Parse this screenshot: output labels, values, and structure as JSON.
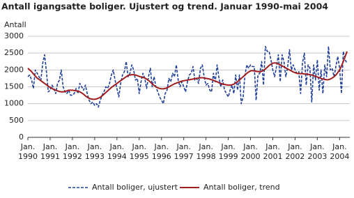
{
  "chart_data": {
    "type": "line",
    "title": "Antall igangsatte boliger. Ujustert og trend. Januar 1990-mai 2004",
    "y_label": "Antall",
    "categories": [
      "Jan. 1990",
      null,
      null,
      null,
      null,
      null,
      null,
      null,
      null,
      null,
      null,
      null,
      "Jan. 1991",
      null,
      null,
      null,
      null,
      null,
      null,
      null,
      null,
      null,
      null,
      null,
      "Jan. 1992",
      null,
      null,
      null,
      null,
      null,
      null,
      null,
      null,
      null,
      null,
      null,
      "Jan. 1993",
      null,
      null,
      null,
      null,
      null,
      null,
      null,
      null,
      null,
      null,
      null,
      "Jan. 1994",
      null,
      null,
      null,
      null,
      null,
      null,
      null,
      null,
      null,
      null,
      null,
      "Jan. 1995",
      null,
      null,
      null,
      null,
      null,
      null,
      null,
      null,
      null,
      null,
      null,
      "Jan. 1996",
      null,
      null,
      null,
      null,
      null,
      null,
      null,
      null,
      null,
      null,
      null,
      "Jan. 1997",
      null,
      null,
      null,
      null,
      null,
      null,
      null,
      null,
      null,
      null,
      null,
      "Jan. 1998",
      null,
      null,
      null,
      null,
      null,
      null,
      null,
      null,
      null,
      null,
      null,
      "Jan. 1999",
      null,
      null,
      null,
      null,
      null,
      null,
      null,
      null,
      null,
      null,
      null,
      "Jan. 2000",
      null,
      null,
      null,
      null,
      null,
      null,
      null,
      null,
      null,
      null,
      null,
      "Jan. 2001",
      null,
      null,
      null,
      null,
      null,
      null,
      null,
      null,
      null,
      null,
      null,
      "Jan. 2002",
      null,
      null,
      null,
      null,
      null,
      null,
      null,
      null,
      null,
      null,
      null,
      "Jan. 2003",
      null,
      null,
      null,
      null,
      null,
      null,
      null,
      null,
      null,
      null,
      null,
      "Jan. 2004",
      null,
      null,
      null,
      null
    ],
    "series": [
      {
        "name": "Antall boliger, ujustert",
        "color": "#1f3f99",
        "dashed": true,
        "values": [
          1800,
          1850,
          1700,
          1450,
          2000,
          1900,
          1800,
          1700,
          2200,
          2450,
          1950,
          1350,
          1400,
          1550,
          1450,
          1300,
          1600,
          1700,
          2000,
          1500,
          1350,
          1300,
          1400,
          1250,
          1250,
          1300,
          1450,
          1300,
          1600,
          1500,
          1400,
          1550,
          1300,
          1100,
          1000,
          1050,
          950,
          1000,
          900,
          1100,
          1250,
          1350,
          1500,
          1450,
          1600,
          1850,
          2000,
          1700,
          1450,
          1200,
          1600,
          1850,
          1950,
          2250,
          1800,
          1900,
          2150,
          2000,
          1700,
          1750,
          1300,
          1650,
          1900,
          1750,
          1450,
          1800,
          2050,
          1500,
          1800,
          1500,
          1350,
          1200,
          1100,
          1000,
          1300,
          1400,
          1750,
          1650,
          1900,
          1800,
          2150,
          1700,
          1500,
          1650,
          1500,
          1350,
          1650,
          1850,
          1900,
          2100,
          1700,
          1750,
          1600,
          2050,
          2150,
          1800,
          1550,
          1600,
          1400,
          1350,
          1900,
          1650,
          2150,
          1750,
          1500,
          1700,
          1400,
          1300,
          1200,
          1400,
          1550,
          1300,
          1850,
          1400,
          1850,
          1000,
          1200,
          1850,
          2150,
          2050,
          2150,
          2100,
          2100,
          1100,
          1850,
          1900,
          2250,
          1550,
          2700,
          2550,
          2550,
          2300,
          2000,
          1800,
          2100,
          2450,
          1650,
          2450,
          2250,
          1800,
          2100,
          2600,
          2000,
          2150,
          2000,
          1900,
          1950,
          1300,
          2200,
          2500,
          1550,
          2150,
          2050,
          1050,
          2150,
          1700,
          2300,
          1400,
          2000,
          1300,
          2150,
          1800,
          2700,
          2000,
          2050,
          1800,
          2100,
          2400,
          2050,
          1300,
          2550,
          2300,
          2200
        ]
      },
      {
        "name": "Antall boliger, trend",
        "color": "#a11d1d",
        "dashed": false,
        "values": [
          2050,
          2000,
          1950,
          1880,
          1820,
          1760,
          1720,
          1680,
          1640,
          1600,
          1560,
          1520,
          1480,
          1450,
          1420,
          1400,
          1380,
          1360,
          1350,
          1350,
          1360,
          1380,
          1400,
          1400,
          1400,
          1390,
          1380,
          1370,
          1350,
          1320,
          1280,
          1230,
          1190,
          1160,
          1140,
          1130,
          1130,
          1140,
          1160,
          1190,
          1230,
          1280,
          1330,
          1380,
          1430,
          1480,
          1520,
          1560,
          1600,
          1640,
          1680,
          1720,
          1760,
          1800,
          1830,
          1850,
          1860,
          1860,
          1850,
          1830,
          1810,
          1790,
          1780,
          1760,
          1730,
          1690,
          1640,
          1590,
          1540,
          1500,
          1470,
          1450,
          1440,
          1440,
          1450,
          1470,
          1500,
          1530,
          1560,
          1590,
          1610,
          1630,
          1650,
          1670,
          1680,
          1690,
          1700,
          1710,
          1720,
          1730,
          1740,
          1750,
          1760,
          1770,
          1770,
          1760,
          1750,
          1740,
          1730,
          1710,
          1690,
          1670,
          1650,
          1620,
          1600,
          1580,
          1570,
          1560,
          1550,
          1550,
          1560,
          1580,
          1610,
          1650,
          1700,
          1750,
          1800,
          1850,
          1900,
          1940,
          1970,
          1980,
          1970,
          1960,
          1950,
          1950,
          1960,
          1990,
          2030,
          2080,
          2130,
          2170,
          2200,
          2210,
          2200,
          2180,
          2150,
          2120,
          2090,
          2060,
          2030,
          2000,
          1970,
          1940,
          1920,
          1900,
          1890,
          1890,
          1890,
          1880,
          1880,
          1870,
          1860,
          1850,
          1830,
          1810,
          1790,
          1770,
          1750,
          1730,
          1720,
          1710,
          1710,
          1730,
          1760,
          1800,
          1850,
          1920,
          2000,
          2120,
          2250,
          2400,
          2550
        ]
      }
    ],
    "ylim": [
      0,
      3000
    ],
    "yticks": [
      0,
      500,
      1000,
      1500,
      2000,
      2500,
      3000
    ],
    "grid": true,
    "legend": "bottom"
  }
}
